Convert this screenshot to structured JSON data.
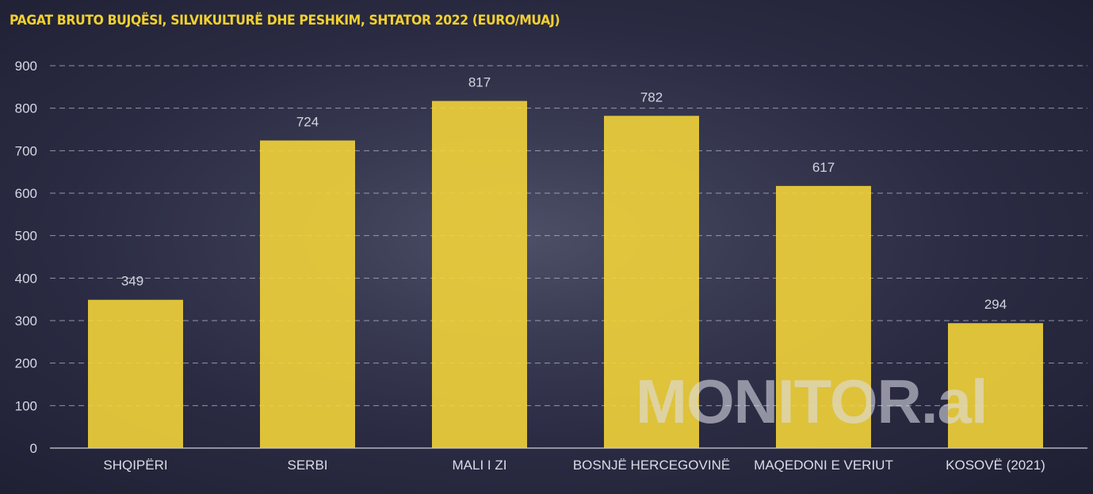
{
  "chart_data": {
    "type": "bar",
    "title": "PAGAT BRUTO  BUJQËSI, SILVIKULTURË DHE PESHKIM, SHTATOR 2022 (EURO/MUAJ)",
    "categories": [
      "SHQIPËRI",
      "SERBI",
      "MALI I ZI",
      "BOSNJË HERCEGOVINË",
      "MAQEDONI E VERIUT",
      "KOSOVË (2021)"
    ],
    "values": [
      349,
      724,
      817,
      782,
      617,
      294
    ],
    "ylim": [
      0,
      900
    ],
    "yticks": [
      0,
      100,
      200,
      300,
      400,
      500,
      600,
      700,
      800,
      900
    ],
    "xlabel": "",
    "ylabel": "",
    "grid": true,
    "legend": "none",
    "colors": {
      "bar": "#f2d33a",
      "grid": "#b8b8c8",
      "title": "#f2d12e",
      "background": "#2c2d45"
    }
  },
  "watermark": {
    "text": "MONITOR.al"
  }
}
